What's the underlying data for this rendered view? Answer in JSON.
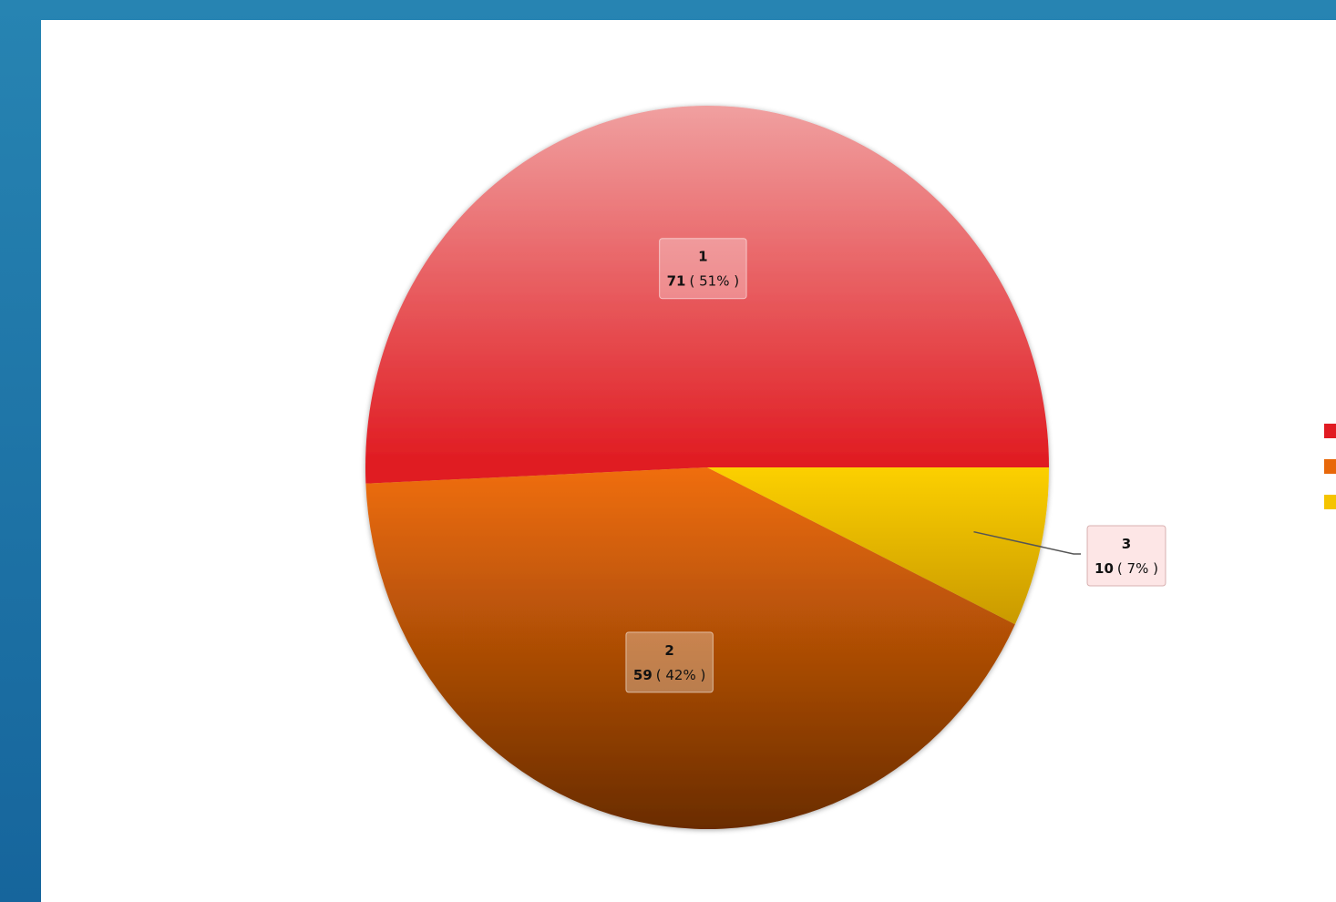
{
  "chart_data": {
    "type": "pie",
    "categories": [
      "1",
      "2",
      "3"
    ],
    "values": [
      71,
      59,
      10
    ],
    "percent_labels": [
      "( 51% )",
      "( 42% )",
      "( 7% )"
    ],
    "colors": [
      "#e11b22",
      "#e8680a",
      "#f5c400"
    ]
  }
}
